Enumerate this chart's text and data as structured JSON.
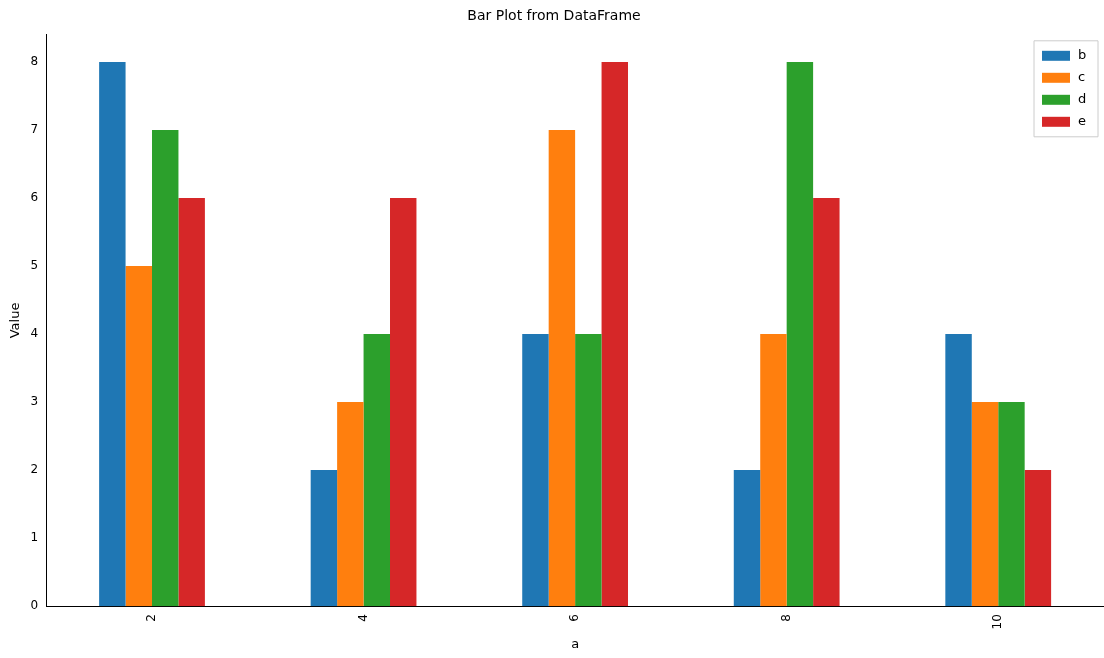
{
  "chart_data": {
    "type": "bar",
    "title": "Bar Plot from DataFrame",
    "xlabel": "a",
    "ylabel": "Value",
    "categories": [
      "2",
      "4",
      "6",
      "8",
      "10"
    ],
    "series": [
      {
        "name": "b",
        "color": "#1f77b4",
        "values": [
          8,
          2,
          4,
          2,
          4
        ]
      },
      {
        "name": "c",
        "color": "#ff7f0e",
        "values": [
          5,
          3,
          7,
          4,
          3
        ]
      },
      {
        "name": "d",
        "color": "#2ca02c",
        "values": [
          7,
          4,
          4,
          8,
          3
        ]
      },
      {
        "name": "e",
        "color": "#d62728",
        "values": [
          6,
          6,
          8,
          6,
          2
        ]
      }
    ],
    "ylim": [
      0,
      8.4
    ],
    "yticks": [
      0,
      1,
      2,
      3,
      4,
      5,
      6,
      7,
      8
    ],
    "grid": false,
    "legend": "top right"
  }
}
